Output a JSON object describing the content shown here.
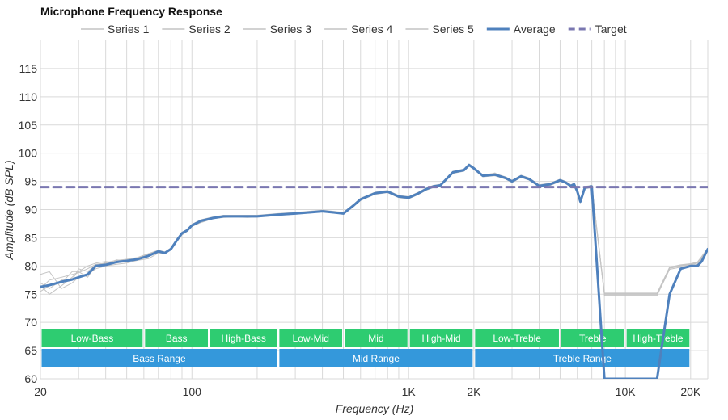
{
  "chart_data": {
    "type": "line",
    "title": "Microphone Frequency Response",
    "xlabel": "Frequency (Hz)",
    "ylabel": "Amplitude (dB SPL)",
    "xscale": "log",
    "xlim": [
      20,
      24000
    ],
    "ylim": [
      60,
      120
    ],
    "grid": true,
    "legend_position": "top",
    "x_ticks": [
      {
        "value": 20,
        "label": "20"
      },
      {
        "value": 100,
        "label": "100"
      },
      {
        "value": 1000,
        "label": "1K"
      },
      {
        "value": 2000,
        "label": "2K"
      },
      {
        "value": 10000,
        "label": "10K"
      },
      {
        "value": 20000,
        "label": "20K"
      }
    ],
    "y_ticks": [
      60,
      65,
      70,
      75,
      80,
      85,
      90,
      95,
      100,
      105,
      110,
      115
    ],
    "x": [
      20,
      22,
      25,
      28,
      30,
      33,
      36,
      40,
      45,
      50,
      56,
      63,
      70,
      75,
      80,
      85,
      90,
      95,
      100,
      110,
      125,
      140,
      160,
      180,
      200,
      250,
      300,
      400,
      450,
      500,
      560,
      600,
      700,
      800,
      900,
      1000,
      1100,
      1200,
      1300,
      1400,
      1600,
      1800,
      1900,
      2000,
      2200,
      2500,
      2800,
      3000,
      3300,
      3600,
      4000,
      4500,
      5000,
      5300,
      5600,
      5800,
      6000,
      6200,
      6500,
      7000,
      8000,
      14000,
      16000,
      18000,
      20000,
      21500,
      22500,
      24000
    ],
    "series": [
      {
        "name": "Series 1",
        "color": "#c4c4c4",
        "values": [
          76.0,
          77.5,
          78.0,
          78.5,
          78.8,
          79.5,
          80.3,
          80.5,
          80.8,
          81.0,
          81.3,
          82.0,
          82.5,
          82.3,
          83.0,
          84.5,
          85.8,
          86.3,
          87.2,
          88.0,
          88.5,
          88.8,
          88.8,
          88.8,
          88.8,
          89.1,
          89.3,
          89.7,
          89.5,
          89.3,
          90.8,
          91.8,
          92.9,
          93.2,
          92.3,
          92.1,
          92.8,
          93.6,
          94.1,
          94.3,
          96.6,
          97.0,
          97.9,
          97.3,
          96.0,
          96.2,
          95.6,
          95.0,
          95.9,
          95.4,
          94.2,
          94.5,
          95.2,
          94.8,
          94.2,
          94.5,
          93.2,
          91.4,
          93.9,
          94.1,
          75.0,
          75.0,
          79.6,
          80.0,
          80.2,
          80.5,
          81.5,
          83.0
        ]
      },
      {
        "name": "Series 2",
        "color": "#c4c4c4",
        "values": [
          78.5,
          79.0,
          76.0,
          77.0,
          78.0,
          78.5,
          79.5,
          80.0,
          80.3,
          80.5,
          81.0,
          81.3,
          82.3,
          82.2,
          82.9,
          84.3,
          85.5,
          86.1,
          87.0,
          87.7,
          88.4,
          88.6,
          88.7,
          88.6,
          88.7,
          89.0,
          89.2,
          89.6,
          89.4,
          89.2,
          90.6,
          91.6,
          92.7,
          93.0,
          92.1,
          91.9,
          92.6,
          93.4,
          93.9,
          94.2,
          96.4,
          96.8,
          97.7,
          97.1,
          95.8,
          96.0,
          95.4,
          94.8,
          95.7,
          95.2,
          94.0,
          94.3,
          95.0,
          94.6,
          94.0,
          94.3,
          93.0,
          91.2,
          93.7,
          93.9,
          74.8,
          74.8,
          79.4,
          79.8,
          80.0,
          80.3,
          81.3,
          82.8
        ]
      },
      {
        "name": "Series 3",
        "color": "#c4c4c4",
        "values": [
          76.5,
          75.0,
          76.5,
          78.0,
          79.0,
          78.0,
          80.0,
          80.6,
          81.0,
          81.2,
          81.5,
          82.2,
          82.8,
          82.5,
          83.2,
          84.7,
          86.0,
          86.5,
          87.4,
          88.2,
          88.7,
          89.0,
          89.0,
          89.0,
          89.0,
          89.3,
          89.5,
          89.9,
          89.7,
          89.5,
          91.0,
          92.0,
          93.1,
          93.4,
          92.5,
          92.3,
          93.0,
          93.8,
          94.3,
          94.5,
          96.8,
          97.2,
          98.1,
          97.5,
          96.2,
          96.4,
          95.8,
          95.2,
          96.1,
          95.6,
          94.4,
          94.7,
          95.4,
          95.0,
          94.4,
          94.7,
          93.4,
          91.6,
          94.1,
          94.3,
          75.2,
          75.2,
          79.8,
          80.2,
          80.4,
          80.7,
          81.7,
          83.2
        ]
      },
      {
        "name": "Series 4",
        "color": "#c4c4c4",
        "values": [
          75.5,
          76.5,
          77.0,
          79.0,
          79.0,
          80.0,
          80.5,
          80.8,
          80.5,
          81.0,
          81.2,
          81.8,
          82.4,
          82.2,
          82.9,
          84.5,
          85.7,
          86.2,
          87.1,
          87.9,
          88.5,
          88.7,
          88.8,
          88.8,
          88.8,
          89.1,
          89.3,
          89.7,
          89.5,
          89.3,
          90.8,
          91.8,
          92.9,
          93.2,
          92.3,
          92.1,
          92.8,
          93.6,
          94.1,
          94.3,
          96.6,
          97.0,
          97.9,
          97.3,
          96.0,
          96.5,
          95.6,
          95.0,
          95.9,
          95.4,
          94.2,
          94.5,
          95.2,
          94.8,
          94.2,
          94.5,
          93.2,
          91.4,
          93.9,
          94.1,
          75.0,
          75.0,
          79.6,
          80.0,
          80.2,
          80.5,
          81.5,
          83.0
        ]
      },
      {
        "name": "Series 5",
        "color": "#c4c4c4",
        "values": [
          77.0,
          76.0,
          77.5,
          77.5,
          79.5,
          79.0,
          80.2,
          80.4,
          81.1,
          80.8,
          81.4,
          82.1,
          82.6,
          82.4,
          83.1,
          84.6,
          85.9,
          86.4,
          87.3,
          88.1,
          88.6,
          88.9,
          88.9,
          88.9,
          88.9,
          89.2,
          89.4,
          89.8,
          89.6,
          89.4,
          90.9,
          91.9,
          93.0,
          93.3,
          92.4,
          92.2,
          92.9,
          93.7,
          94.2,
          94.4,
          96.7,
          97.1,
          98.0,
          97.4,
          96.1,
          96.3,
          95.7,
          95.1,
          96.0,
          95.5,
          94.3,
          94.6,
          95.3,
          94.9,
          94.3,
          94.6,
          93.3,
          91.5,
          94.0,
          94.2,
          75.1,
          75.1,
          79.7,
          80.1,
          80.3,
          80.6,
          81.6,
          83.1
        ]
      },
      {
        "name": "Average",
        "color": "#4f81bd",
        "values": [
          76.3,
          76.6,
          77.2,
          77.6,
          78.0,
          78.5,
          80.0,
          80.2,
          80.7,
          80.9,
          81.2,
          81.8,
          82.6,
          82.3,
          83.0,
          84.5,
          85.8,
          86.3,
          87.2,
          88.0,
          88.5,
          88.8,
          88.8,
          88.8,
          88.8,
          89.1,
          89.3,
          89.7,
          89.5,
          89.3,
          90.8,
          91.8,
          92.9,
          93.2,
          92.3,
          92.1,
          92.8,
          93.6,
          94.1,
          94.3,
          96.6,
          97.0,
          97.9,
          97.3,
          96.0,
          96.2,
          95.6,
          95.0,
          95.9,
          95.4,
          94.2,
          94.5,
          95.2,
          94.8,
          94.2,
          94.5,
          93.2,
          91.4,
          93.9,
          94.1,
          60.0,
          60.0,
          75.0,
          79.5,
          80.0,
          80.0,
          80.8,
          83.0
        ]
      },
      {
        "name": "Target",
        "color": "#7a77b0",
        "dashed": true,
        "values": [
          94,
          94,
          94,
          94,
          94,
          94,
          94,
          94,
          94,
          94,
          94,
          94,
          94,
          94,
          94,
          94,
          94,
          94,
          94,
          94,
          94,
          94,
          94,
          94,
          94,
          94,
          94,
          94,
          94,
          94,
          94,
          94,
          94,
          94,
          94,
          94,
          94,
          94,
          94,
          94,
          94,
          94,
          94,
          94,
          94,
          94,
          94,
          94,
          94,
          94,
          94,
          94,
          94,
          94,
          94,
          94,
          94,
          94,
          94,
          94,
          94,
          94,
          94,
          94,
          94,
          94,
          94,
          94
        ]
      }
    ],
    "bands_upper": [
      {
        "label": "Low-Bass",
        "from": 20,
        "to": 60,
        "color": "#2ecc71"
      },
      {
        "label": "Bass",
        "from": 60,
        "to": 120,
        "color": "#2ecc71"
      },
      {
        "label": "High-Bass",
        "from": 120,
        "to": 250,
        "color": "#2ecc71"
      },
      {
        "label": "Low-Mid",
        "from": 250,
        "to": 500,
        "color": "#2ecc71"
      },
      {
        "label": "Mid",
        "from": 500,
        "to": 1000,
        "color": "#2ecc71"
      },
      {
        "label": "High-Mid",
        "from": 1000,
        "to": 2000,
        "color": "#2ecc71"
      },
      {
        "label": "Low-Treble",
        "from": 2000,
        "to": 5000,
        "color": "#2ecc71"
      },
      {
        "label": "Treble",
        "from": 5000,
        "to": 10000,
        "color": "#2ecc71"
      },
      {
        "label": "High-Treble",
        "from": 10000,
        "to": 20000,
        "color": "#2ecc71"
      }
    ],
    "bands_lower": [
      {
        "label": "Bass Range",
        "from": 20,
        "to": 250,
        "color": "#3498db"
      },
      {
        "label": "Mid Range",
        "from": 250,
        "to": 2000,
        "color": "#3498db"
      },
      {
        "label": "Treble Range",
        "from": 2000,
        "to": 20000,
        "color": "#3498db"
      }
    ]
  }
}
